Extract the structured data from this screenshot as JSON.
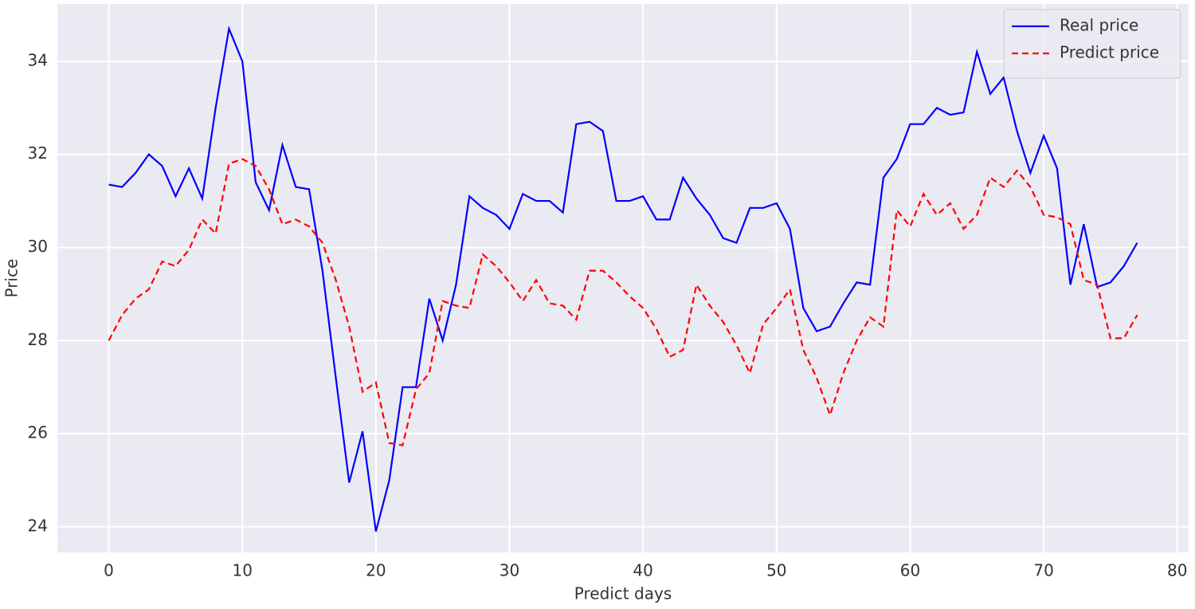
{
  "chart_data": {
    "type": "line",
    "x_label": "Predict days",
    "y_label": "Price",
    "x": [
      0,
      1,
      2,
      3,
      4,
      5,
      6,
      7,
      8,
      9,
      10,
      11,
      12,
      13,
      14,
      15,
      16,
      17,
      18,
      19,
      20,
      21,
      22,
      23,
      24,
      25,
      26,
      27,
      28,
      29,
      30,
      31,
      32,
      33,
      34,
      35,
      36,
      37,
      38,
      39,
      40,
      41,
      42,
      43,
      44,
      45,
      46,
      47,
      48,
      49,
      50,
      51,
      52,
      53,
      54,
      55,
      56,
      57,
      58,
      59,
      60,
      61,
      62,
      63,
      64,
      65,
      66,
      67,
      68,
      69,
      70,
      71,
      72,
      73,
      74,
      75,
      76,
      77
    ],
    "series": [
      {
        "name": "Real price",
        "color": "#0000ff",
        "dash": "solid",
        "values": [
          31.35,
          31.3,
          31.6,
          32.0,
          31.75,
          31.1,
          31.7,
          31.05,
          33.0,
          34.7,
          34.0,
          31.4,
          30.8,
          32.2,
          31.3,
          31.25,
          29.5,
          27.2,
          24.95,
          26.05,
          23.9,
          25.0,
          27.0,
          27.0,
          28.9,
          28.0,
          29.2,
          31.1,
          30.85,
          30.7,
          30.4,
          31.15,
          31.0,
          31.0,
          30.75,
          32.65,
          32.7,
          32.5,
          31.0,
          31.0,
          31.1,
          30.6,
          30.6,
          31.5,
          31.05,
          30.7,
          30.2,
          30.1,
          30.85,
          30.85,
          30.95,
          30.4,
          28.7,
          28.2,
          28.3,
          28.8,
          29.25,
          29.2,
          31.5,
          31.9,
          32.65,
          32.65,
          33.0,
          32.85,
          32.9,
          34.2,
          33.3,
          33.65,
          32.5,
          31.6,
          32.4,
          31.7,
          29.2,
          30.5,
          29.15,
          29.25,
          29.6,
          30.1
        ]
      },
      {
        "name": "Predict price",
        "color": "#ff0000",
        "dash": "dashed",
        "values": [
          28.0,
          28.55,
          28.9,
          29.1,
          29.7,
          29.6,
          29.95,
          30.6,
          30.3,
          31.8,
          31.9,
          31.75,
          31.25,
          30.5,
          30.6,
          30.45,
          30.1,
          29.3,
          28.3,
          26.9,
          27.1,
          25.8,
          25.75,
          26.95,
          27.3,
          28.85,
          28.75,
          28.7,
          29.85,
          29.6,
          29.25,
          28.85,
          29.3,
          28.8,
          28.75,
          28.45,
          29.5,
          29.5,
          29.25,
          28.95,
          28.7,
          28.25,
          27.65,
          27.8,
          29.2,
          28.75,
          28.4,
          27.9,
          27.3,
          28.35,
          28.7,
          29.1,
          27.8,
          27.2,
          26.4,
          27.3,
          28.0,
          28.5,
          28.3,
          30.8,
          30.45,
          31.15,
          30.7,
          30.95,
          30.4,
          30.7,
          31.5,
          31.3,
          31.65,
          31.3,
          30.7,
          30.65,
          30.5,
          29.3,
          29.2,
          28.05,
          28.05,
          28.55
        ]
      }
    ],
    "xlim": [
      -3.85,
      80.85
    ],
    "ylim": [
      23.45,
      35.23
    ],
    "xticks": [
      0,
      10,
      20,
      30,
      40,
      50,
      60,
      70,
      80
    ],
    "yticks": [
      24,
      26,
      28,
      30,
      32,
      34
    ],
    "grid": true,
    "legend": "upper right"
  }
}
